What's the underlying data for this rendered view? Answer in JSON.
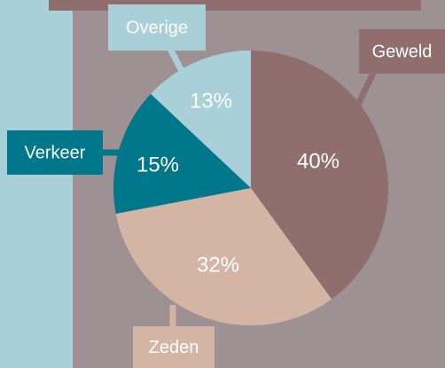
{
  "chart_data": {
    "type": "pie",
    "categories": [
      "Geweld",
      "Zeden",
      "Verkeer",
      "Overige"
    ],
    "values": [
      40,
      32,
      15,
      13
    ],
    "value_labels": [
      "40%",
      "32%",
      "15%",
      "13%"
    ],
    "colors": [
      "#916e6e",
      "#d4b5a4",
      "#00778a",
      "#a9d0d9"
    ]
  }
}
